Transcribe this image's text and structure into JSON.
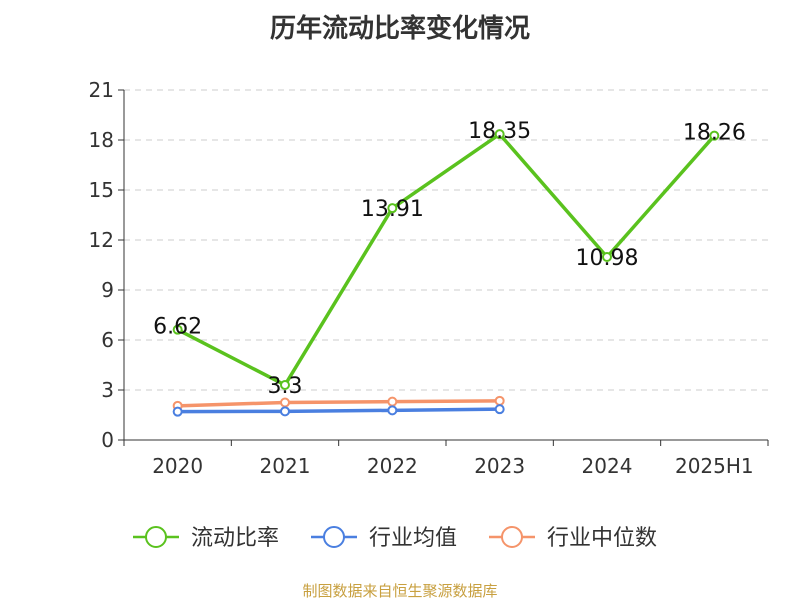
{
  "title": "历年流动比率变化情况",
  "source": "制图数据来自恒生聚源数据库",
  "chart_data": {
    "type": "line",
    "title": "历年流动比率变化情况",
    "categories": [
      "2020",
      "2021",
      "2022",
      "2023",
      "2024",
      "2025H1"
    ],
    "y_ticks": [
      "0",
      "3",
      "6",
      "9",
      "12",
      "15",
      "18",
      "21"
    ],
    "ylim": [
      0,
      21
    ],
    "grid": true,
    "legend_position": "bottom",
    "series": [
      {
        "name": "流动比率",
        "color": "#5ac21e",
        "values": [
          6.62,
          3.3,
          13.91,
          18.35,
          10.98,
          18.26
        ],
        "labels": [
          "6.62",
          "3.3",
          "13.91",
          "18.35",
          "10.98",
          "18.26"
        ]
      },
      {
        "name": "行业均值",
        "color": "#4a7fe0",
        "values": [
          1.7,
          1.72,
          1.78,
          1.85,
          null,
          null
        ],
        "labels": []
      },
      {
        "name": "行业中位数",
        "color": "#f5946a",
        "values": [
          2.05,
          2.25,
          2.3,
          2.35,
          null,
          null
        ],
        "labels": []
      }
    ]
  }
}
